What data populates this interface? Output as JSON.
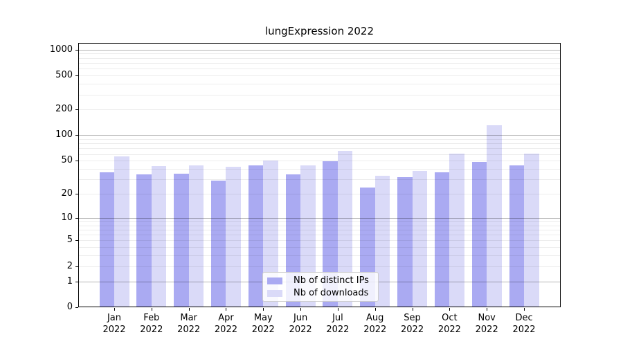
{
  "title": "lungExpression 2022",
  "chart_data": {
    "type": "bar",
    "categories": [
      "Jan",
      "Feb",
      "Mar",
      "Apr",
      "May",
      "Jun",
      "Jul",
      "Aug",
      "Sep",
      "Oct",
      "Nov",
      "Dec"
    ],
    "category_year": "2022",
    "series": [
      {
        "name": "Nb of distinct IPs",
        "color": "#aaaaf2",
        "values": [
          36,
          34,
          35,
          29,
          44,
          34,
          49,
          24,
          32,
          36,
          48,
          44
        ]
      },
      {
        "name": "Nb of downloads",
        "color": "#dadaf8",
        "values": [
          56,
          43,
          44,
          42,
          50,
          44,
          66,
          33,
          38,
          61,
          130,
          61
        ]
      }
    ],
    "title": "lungExpression 2022",
    "xlabel": "",
    "ylabel": "",
    "yticks": [
      0,
      1,
      2,
      5,
      10,
      20,
      50,
      100,
      200,
      500,
      1000
    ],
    "ylim": [
      0,
      1200
    ],
    "yscale": "log10(1+y)",
    "grid": "horizontal, minor lines light gray, decade lines darker gray, drawn over bars",
    "legend_position": "bottom-center inside plot"
  },
  "legend": {
    "items": [
      {
        "label": "Nb of distinct IPs",
        "color": "#aaaaf2"
      },
      {
        "label": "Nb of downloads",
        "color": "#dadaf8"
      }
    ]
  }
}
